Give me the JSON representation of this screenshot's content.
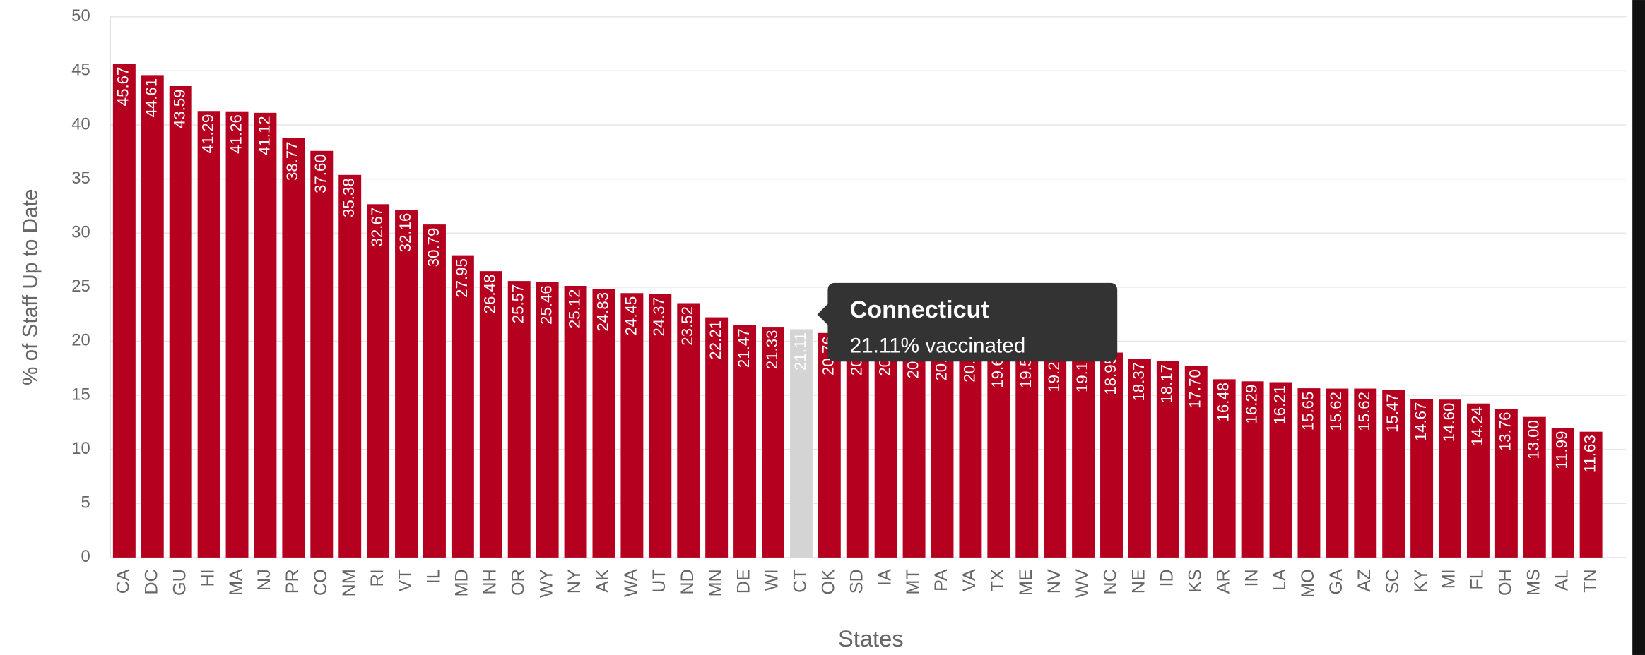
{
  "chart_data": {
    "type": "bar",
    "y_label": "% of Staff Up to Date",
    "x_label": "States",
    "categories": [
      "CA",
      "DC",
      "GU",
      "HI",
      "MA",
      "NJ",
      "PR",
      "CO",
      "NM",
      "RI",
      "VT",
      "IL",
      "MD",
      "NH",
      "OR",
      "WY",
      "NY",
      "AK",
      "WA",
      "UT",
      "ND",
      "MN",
      "DE",
      "WI",
      "CT",
      "OK",
      "SD",
      "IA",
      "MT",
      "PA",
      "VA",
      "TX",
      "ME",
      "NV",
      "WV",
      "NC",
      "NE",
      "ID",
      "KS",
      "AR",
      "IN",
      "LA",
      "MO",
      "GA",
      "AZ",
      "SC",
      "KY",
      "MI",
      "FL",
      "OH",
      "MS",
      "AL",
      "TN"
    ],
    "values": [
      45.67,
      44.61,
      43.59,
      41.29,
      41.26,
      41.12,
      38.77,
      37.6,
      35.38,
      32.67,
      32.16,
      30.79,
      27.95,
      26.48,
      25.57,
      25.46,
      25.12,
      24.83,
      24.45,
      24.37,
      23.52,
      22.21,
      21.47,
      21.33,
      21.11,
      20.76,
      20.75,
      20.71,
      20.47,
      20.26,
      20.12,
      19.6,
      19.58,
      19.21,
      19.18,
      18.95,
      18.37,
      18.17,
      17.7,
      16.48,
      16.29,
      16.21,
      15.65,
      15.62,
      15.62,
      15.47,
      14.67,
      14.6,
      14.24,
      13.76,
      13,
      11.99,
      11.63
    ],
    "value_labels": [
      "45.67",
      "44.61",
      "43.59",
      "41.29",
      "41.26",
      "41.12",
      "38.77",
      "37.60",
      "35.38",
      "32.67",
      "32.16",
      "30.79",
      "27.95",
      "26.48",
      "25.57",
      "25.46",
      "25.12",
      "24.83",
      "24.45",
      "24.37",
      "23.52",
      "22.21",
      "21.47",
      "21.33",
      "21.11",
      "20.76",
      "20.75",
      "20.71",
      "20.47",
      "20.26",
      "20.12",
      "19.60",
      "19.58",
      "19.21",
      "19.18",
      "18.95",
      "18.37",
      "18.17",
      "17.70",
      "16.48",
      "16.29",
      "16.21",
      "15.65",
      "15.62",
      "15.62",
      "15.47",
      "14.67",
      "14.60",
      "14.24",
      "13.76",
      "13.00",
      "11.99",
      "11.63"
    ],
    "color": "#b5001f",
    "highlight": "CT",
    "highlight_color": "#d4d4d4",
    "ylim": [
      0,
      50
    ],
    "yticks": [
      0,
      5,
      10,
      15,
      20,
      25,
      30,
      35,
      40,
      45,
      50
    ],
    "grid": true,
    "tooltip": {
      "title": "Connecticut",
      "text": "21.11% vaccinated"
    }
  }
}
